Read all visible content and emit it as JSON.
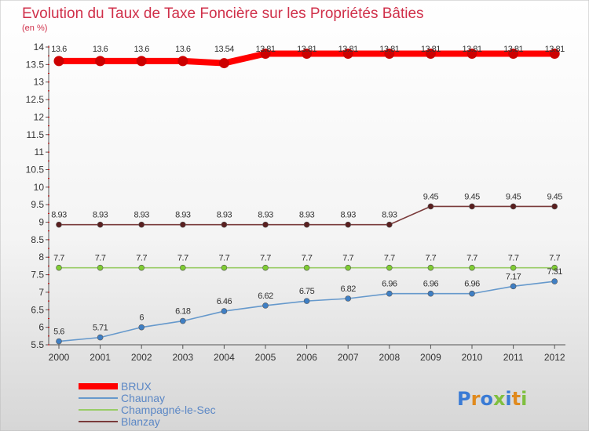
{
  "chart_data": {
    "type": "line",
    "title": "Evolution du Taux de Taxe Foncière sur les Propriétés Bâties",
    "subtitle": "(en %)",
    "xlabel": "",
    "ylabel": "",
    "x": [
      "2000",
      "2001",
      "2002",
      "2003",
      "2004",
      "2005",
      "2006",
      "2007",
      "2008",
      "2009",
      "2010",
      "2011",
      "2012"
    ],
    "ylim": [
      5.5,
      14
    ],
    "yticks": [
      "5.5",
      "6",
      "6.5",
      "7",
      "7.5",
      "8",
      "8.5",
      "9",
      "9.5",
      "10",
      "10.5",
      "11",
      "11.5",
      "12",
      "12.5",
      "13",
      "13.5",
      "14"
    ],
    "grid": false,
    "legend_position": "bottom-left",
    "series": [
      {
        "name": "BRUX",
        "color": "#ff0000",
        "marker": "#cc0000",
        "values": [
          13.6,
          13.6,
          13.6,
          13.6,
          13.54,
          13.81,
          13.81,
          13.81,
          13.81,
          13.81,
          13.81,
          13.81,
          13.81
        ],
        "labels": [
          "13.6",
          "13.6",
          "13.6",
          "13.6",
          "13.54",
          "13.81",
          "13.81",
          "13.81",
          "13.81",
          "13.81",
          "13.81",
          "13.81",
          "13.81"
        ]
      },
      {
        "name": "Chaunay",
        "color": "#6699cc",
        "marker": "#3f7fc4",
        "values": [
          5.6,
          5.71,
          6,
          6.18,
          6.46,
          6.62,
          6.75,
          6.82,
          6.96,
          6.96,
          6.96,
          7.17,
          7.31
        ],
        "labels": [
          "5.6",
          "5.71",
          "6",
          "6.18",
          "6.46",
          "6.62",
          "6.75",
          "6.82",
          "6.96",
          "6.96",
          "6.96",
          "7.17",
          "7.31"
        ]
      },
      {
        "name": "Champagné-le-Sec",
        "color": "#99cc66",
        "marker": "#7fcc33",
        "values": [
          7.7,
          7.7,
          7.7,
          7.7,
          7.7,
          7.7,
          7.7,
          7.7,
          7.7,
          7.7,
          7.7,
          7.7,
          7.7
        ],
        "labels": [
          "7.7",
          "7.7",
          "7.7",
          "7.7",
          "7.7",
          "7.7",
          "7.7",
          "7.7",
          "7.7",
          "7.7",
          "7.7",
          "7.7",
          "7.7"
        ]
      },
      {
        "name": "Blanzay",
        "color": "#7a3b3b",
        "marker": "#5a1f1f",
        "values": [
          8.93,
          8.93,
          8.93,
          8.93,
          8.93,
          8.93,
          8.93,
          8.93,
          8.93,
          9.45,
          9.45,
          9.45,
          9.45
        ],
        "labels": [
          "8.93",
          "8.93",
          "8.93",
          "8.93",
          "8.93",
          "8.93",
          "8.93",
          "8.93",
          "8.93",
          "9.45",
          "9.45",
          "9.45",
          "9.45"
        ]
      }
    ]
  },
  "logo_text": "Proxiti",
  "colors": {
    "title": "#d0304a",
    "axis": "#444444",
    "background_top": "#ffffff",
    "background_bottom": "#d8d8d8"
  }
}
